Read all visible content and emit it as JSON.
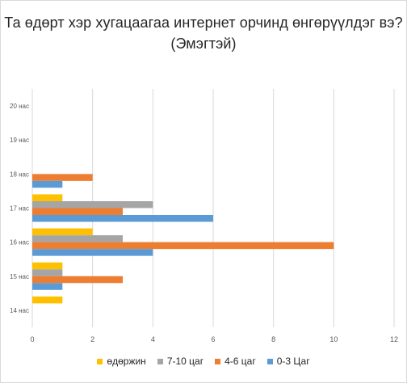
{
  "chart_data": {
    "type": "bar",
    "orientation": "horizontal",
    "title": "Та өдөрт хэр хугацаагаа интернет орчинд өнгөрүүлдэг вэ?",
    "subtitle": "(Эмэгтэй)",
    "categories": [
      "14 нас",
      "15 нас",
      "16 нас",
      "17 нас",
      "18 нас",
      "19 нас",
      "20 нас"
    ],
    "series": [
      {
        "name": "өдөржин",
        "color": "#FFC000",
        "values": [
          1,
          1,
          2,
          1,
          0,
          0,
          0
        ]
      },
      {
        "name": "7-10 цаг",
        "color": "#A5A5A5",
        "values": [
          0,
          1,
          3,
          4,
          0,
          0,
          0
        ]
      },
      {
        "name": "4-6 цаг",
        "color": "#ED7D31",
        "values": [
          0,
          3,
          10,
          3,
          2,
          0,
          0
        ]
      },
      {
        "name": "0-3 Цаг",
        "color": "#5B9BD5",
        "values": [
          0,
          1,
          4,
          6,
          1,
          0,
          0
        ]
      }
    ],
    "xlim": [
      0,
      12
    ],
    "xticks": [
      0,
      2,
      4,
      6,
      8,
      10,
      12
    ],
    "xlabel": "",
    "ylabel": "",
    "grid": true,
    "legend_position": "bottom"
  }
}
